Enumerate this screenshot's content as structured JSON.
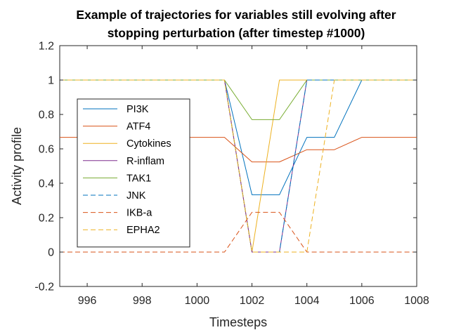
{
  "chart_data": {
    "type": "line",
    "title_line1": "Example of trajectories for variables still evolving after",
    "title_line2": "stopping perturbation (after timestep #1000)",
    "xlabel": "Timesteps",
    "ylabel": "Activity profile",
    "xlim": [
      995,
      1008
    ],
    "ylim": [
      -0.2,
      1.2
    ],
    "xticks": [
      996,
      998,
      1000,
      1002,
      1004,
      1006,
      1008
    ],
    "yticks": [
      -0.2,
      0,
      0.2,
      0.4,
      0.6,
      0.8,
      1,
      1.2
    ],
    "ytick_labels": [
      "-0.2",
      "0",
      "0.2",
      "0.4",
      "0.6",
      "0.8",
      "1",
      "1.2"
    ],
    "grid": false,
    "legend_position": "left-middle",
    "series": [
      {
        "name": "PI3K",
        "color": "#0072BD",
        "dash": "solid",
        "x": [
          995,
          1001,
          1002,
          1003,
          1004,
          1005,
          1006,
          1008
        ],
        "y": [
          1,
          1,
          0.333,
          0.333,
          0.667,
          0.667,
          1,
          1
        ]
      },
      {
        "name": "ATF4",
        "color": "#D95319",
        "dash": "solid",
        "x": [
          995,
          1001,
          1002,
          1003,
          1004,
          1005,
          1006,
          1008
        ],
        "y": [
          0.667,
          0.667,
          0.524,
          0.524,
          0.595,
          0.595,
          0.667,
          0.667
        ]
      },
      {
        "name": "Cytokines",
        "color": "#EDB120",
        "dash": "solid",
        "x": [
          995,
          1001,
          1002,
          1003,
          1008
        ],
        "y": [
          1,
          1,
          0,
          1,
          1
        ]
      },
      {
        "name": "R-inflam",
        "color": "#7E2F8E",
        "dash": "solid",
        "x": [
          995,
          1001,
          1002,
          1003,
          1004,
          1008
        ],
        "y": [
          1,
          1,
          0,
          0,
          1,
          1
        ]
      },
      {
        "name": "TAK1",
        "color": "#77AC30",
        "dash": "solid",
        "x": [
          995,
          1001,
          1002,
          1003,
          1004,
          1008
        ],
        "y": [
          1,
          1,
          0.77,
          0.77,
          1,
          1
        ]
      },
      {
        "name": "JNK",
        "color": "#0072BD",
        "dash": "dashed",
        "x": [
          995,
          1001,
          1002,
          1003,
          1004,
          1008
        ],
        "y": [
          1,
          1,
          0,
          0,
          1,
          1
        ]
      },
      {
        "name": "IKB-a",
        "color": "#D95319",
        "dash": "dashed",
        "x": [
          995,
          1001,
          1002,
          1003,
          1004,
          1008
        ],
        "y": [
          0,
          0,
          0.231,
          0.231,
          0,
          0
        ]
      },
      {
        "name": "EPHA2",
        "color": "#EDB120",
        "dash": "dashed",
        "x": [
          995,
          1001,
          1002,
          1003,
          1004,
          1005,
          1008
        ],
        "y": [
          1,
          1,
          0,
          0,
          0,
          1,
          1
        ]
      }
    ]
  }
}
